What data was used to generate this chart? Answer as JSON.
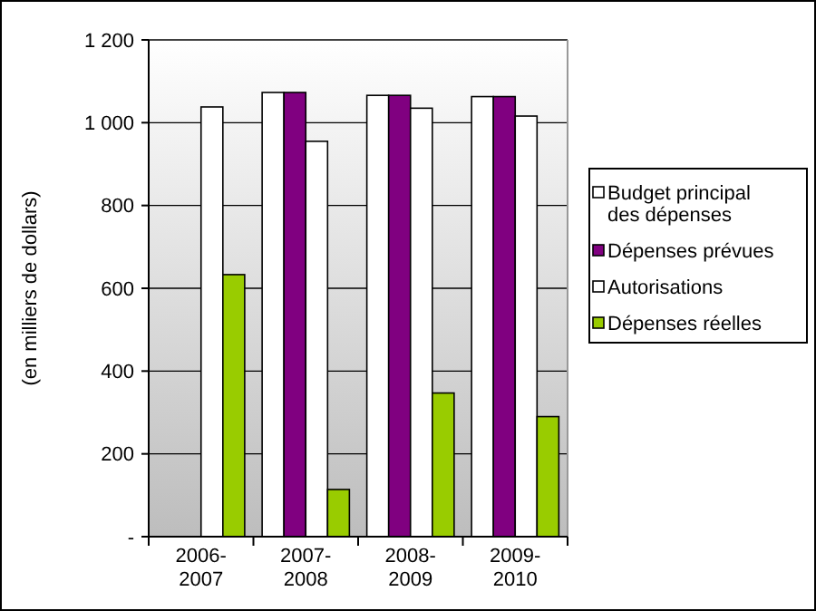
{
  "chart_data": {
    "type": "bar",
    "ylabel": "(en milliers de dollars)",
    "categories": [
      "2006-\n2007",
      "2007-\n2008",
      "2008-\n2009",
      "2009-\n2010"
    ],
    "series": [
      {
        "name": "Budget principal des dépenses",
        "color": "#ffffff",
        "values": [
          null,
          1073,
          1066,
          1063
        ]
      },
      {
        "name": "Dépenses prévues",
        "color": "#800080",
        "values": [
          null,
          1073,
          1066,
          1063
        ]
      },
      {
        "name": "Autorisations",
        "color": "#ffffff",
        "values": [
          1038,
          955,
          1035,
          1016
        ]
      },
      {
        "name": "Dépenses réelles",
        "color": "#99cc00",
        "values": [
          633,
          114,
          347,
          290
        ]
      }
    ],
    "ylim": [
      0,
      1200
    ],
    "yticks": [
      {
        "value": 0,
        "label": "-"
      },
      {
        "value": 200,
        "label": "200"
      },
      {
        "value": 400,
        "label": "400"
      },
      {
        "value": 600,
        "label": "600"
      },
      {
        "value": 800,
        "label": "800"
      },
      {
        "value": 1000,
        "label": "1 000"
      },
      {
        "value": 1200,
        "label": "1 200"
      }
    ],
    "grid": "y",
    "legend": "right"
  }
}
